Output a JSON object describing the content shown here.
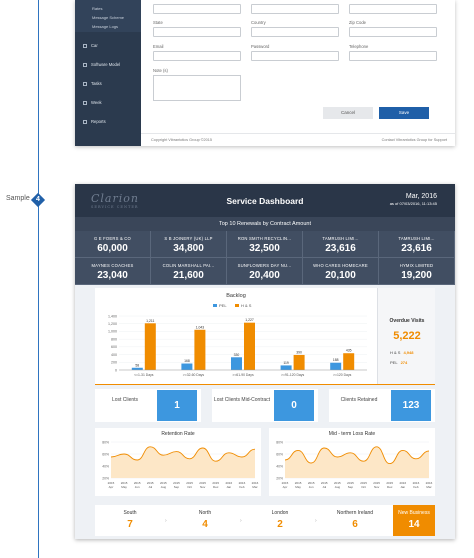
{
  "sample": {
    "label": "Sample",
    "number": "4"
  },
  "sidebar": {
    "sub_items": [
      "Rates",
      "Message Scheme",
      "Message Logs"
    ],
    "items": [
      {
        "label": "Car",
        "icon": "car-icon"
      },
      {
        "label": "Software Model",
        "icon": "cube-icon"
      },
      {
        "label": "Tasks",
        "icon": "tasks-icon"
      },
      {
        "label": "Week",
        "icon": "calendar-icon"
      },
      {
        "label": "Reports",
        "icon": "reports-icon"
      }
    ]
  },
  "form": {
    "state_label": "State",
    "country_label": "Country",
    "zip_label": "Zip Code",
    "email_label": "Email",
    "password_label": "Password",
    "telephone_label": "Telephone",
    "notes_label": "Note (s)",
    "cancel_label": "Cancel",
    "save_label": "Save"
  },
  "footer": {
    "copyright": "Copyright Vibrantotics Group ©2015",
    "contact": "Contact Vibrantotics Group for Support"
  },
  "dashboard": {
    "logo": "Clarion",
    "logo_sub": "SERVICE CENTER",
    "title": "Service Dashboard",
    "date": "Mar, 2016",
    "as_of": "as of 07/03/2016, 11:13:45",
    "renewals_title": "Top 10 Renewals by Contract Amount",
    "renewals": [
      {
        "name": "G E FOERS & CO",
        "value": "60,000"
      },
      {
        "name": "S B JOINERY (UK) LLP",
        "value": "34,800"
      },
      {
        "name": "RON SMITH RECYCLIN...",
        "value": "32,500"
      },
      {
        "name": "TAMRUSH LIMI...",
        "value": "23,616"
      },
      {
        "name": "TAMRUSH LIMI...",
        "value": "23,616"
      },
      {
        "name": "MAYNES COACHES",
        "value": "23,040"
      },
      {
        "name": "COLIN MARSHALL PAI...",
        "value": "21,600"
      },
      {
        "name": "SUNFLOWERS DAY NU...",
        "value": "20,400"
      },
      {
        "name": "WHO CARES HOMECARE",
        "value": "20,100"
      },
      {
        "name": "HYMIX LIMITED",
        "value": "19,200"
      }
    ],
    "overdue": {
      "label": "Overdue Visits",
      "value": "5,222",
      "hs_label": "H & S",
      "hs_value": "4,948",
      "pel_label": "PEL",
      "pel_value": "274"
    },
    "kpis": [
      {
        "label": "Lost Clients",
        "value": "1"
      },
      {
        "label": "Lost Clients Mid-Contract",
        "value": "0"
      },
      {
        "label": "Clients Retained",
        "value": "123"
      }
    ],
    "regions": [
      {
        "name": "South",
        "value": "7"
      },
      {
        "name": "North",
        "value": "4"
      },
      {
        "name": "London",
        "value": "2"
      },
      {
        "name": "Northern Ireland",
        "value": "6"
      },
      {
        "name": "New Business",
        "value": "14"
      }
    ]
  },
  "colors": {
    "pel": "#3d97df",
    "hs": "#f08c00",
    "accent": "#1f5fa8"
  },
  "chart_data": [
    {
      "type": "bar",
      "title": "Backlog",
      "categories": [
        "<=1-31 Days",
        ">=32-60 Days",
        ">=61-90 Days",
        ">=91-120 Days",
        ">=120 Days"
      ],
      "series": [
        {
          "name": "PEL",
          "values": [
            58,
            168,
            330,
            119,
            188
          ]
        },
        {
          "name": "H & S",
          "values": [
            1211,
            1043,
            1227,
            390,
            435
          ]
        }
      ],
      "ylim": [
        0,
        1400
      ],
      "yticks": [
        "1,400",
        "1,200",
        "1,000",
        "800",
        "600",
        "400",
        "200",
        "0"
      ]
    },
    {
      "type": "line",
      "title": "Retention Rate",
      "x": [
        "2015 Apr",
        "2015 May",
        "2015 Jun",
        "2015 Jul",
        "2015 Aug",
        "2015 Sep",
        "2015 Oct",
        "2015 Nov",
        "2015 Dec",
        "2016 Jan",
        "2016 Feb",
        "2016 Mar"
      ],
      "values": [
        55,
        60,
        50,
        72,
        58,
        64,
        52,
        70,
        48,
        62,
        55,
        68
      ],
      "ylim": [
        20,
        80
      ],
      "yticks": [
        "80%",
        "60%",
        "40%",
        "20%"
      ]
    },
    {
      "type": "line",
      "title": "Mid - term Loss Rate",
      "x": [
        "2015 Apr",
        "2015 May",
        "2015 Jun",
        "2015 Jul",
        "2015 Aug",
        "2015 Sep",
        "2015 Oct",
        "2015 Nov",
        "2015 Dec",
        "2016 Jan",
        "2016 Feb",
        "2016 Mar"
      ],
      "values": [
        50,
        66,
        45,
        70,
        55,
        62,
        48,
        72,
        44,
        66,
        52,
        65
      ],
      "ylim": [
        20,
        80
      ],
      "yticks": [
        "80%",
        "60%",
        "40%",
        "20%"
      ]
    }
  ]
}
